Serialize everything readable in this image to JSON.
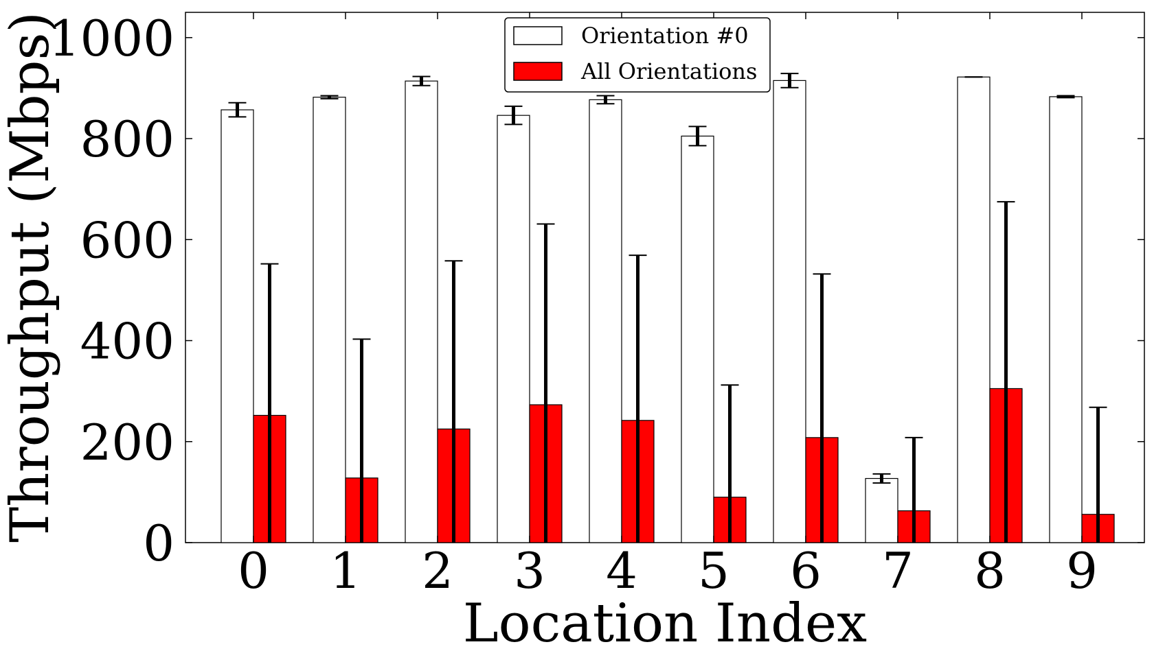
{
  "chart_data": {
    "type": "bar",
    "xlabel": "Location Index",
    "ylabel": "Throughput (Mbps)",
    "categories": [
      "0",
      "1",
      "2",
      "3",
      "4",
      "5",
      "6",
      "7",
      "8",
      "9"
    ],
    "ylim": [
      0,
      1050
    ],
    "yticks": [
      "0",
      "200",
      "400",
      "600",
      "800",
      "1000"
    ],
    "grid": false,
    "legend_position": "top-center",
    "series": [
      {
        "name": "Orientation #0",
        "color": "#ffffff",
        "values": [
          857,
          882,
          914,
          846,
          877,
          805,
          915,
          127,
          922,
          883
        ],
        "errors": [
          14,
          3,
          9,
          18,
          8,
          19,
          14,
          9,
          0,
          2
        ]
      },
      {
        "name": "All Orientations",
        "color": "#ff0000",
        "values": [
          252,
          128,
          225,
          273,
          242,
          90,
          208,
          63,
          305,
          56
        ],
        "errors": [
          300,
          275,
          333,
          358,
          327,
          222,
          324,
          145,
          370,
          212
        ]
      }
    ]
  }
}
